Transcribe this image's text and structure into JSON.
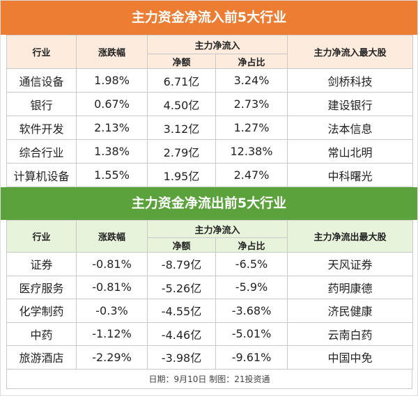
{
  "inflow": {
    "title": "主力资金净流入前5大行业",
    "headers": {
      "industry": "行业",
      "change": "涨跌幅",
      "main_flow": "主力净流入",
      "net_amount": "净额",
      "net_ratio": "净占比",
      "top_stock": "主力净流入最大股"
    },
    "rows": [
      {
        "industry": "通信设备",
        "change": "1.98%",
        "amount": "6.71亿",
        "ratio": "3.24%",
        "stock": "剑桥科技"
      },
      {
        "industry": "银行",
        "change": "0.67%",
        "amount": "4.50亿",
        "ratio": "2.73%",
        "stock": "建设银行"
      },
      {
        "industry": "软件开发",
        "change": "2.13%",
        "amount": "3.12亿",
        "ratio": "1.27%",
        "stock": "法本信息"
      },
      {
        "industry": "综合行业",
        "change": "1.38%",
        "amount": "2.79亿",
        "ratio": "12.38%",
        "stock": "常山北明"
      },
      {
        "industry": "计算机设备",
        "change": "1.55%",
        "amount": "1.95亿",
        "ratio": "2.47%",
        "stock": "中科曙光"
      }
    ]
  },
  "outflow": {
    "title": "主力资金净流出前5大行业",
    "headers": {
      "industry": "行业",
      "change": "涨跌幅",
      "main_flow": "主力净流入",
      "net_amount": "净额",
      "net_ratio": "净占比",
      "top_stock": "主力净流出最大股"
    },
    "rows": [
      {
        "industry": "证券",
        "change": "-0.81%",
        "amount": "-8.79亿",
        "ratio": "-6.5%",
        "stock": "天风证券"
      },
      {
        "industry": "医疗服务",
        "change": "-0.81%",
        "amount": "-5.26亿",
        "ratio": "-5.9%",
        "stock": "药明康德"
      },
      {
        "industry": "化学制药",
        "change": "-0.3%",
        "amount": "-4.55亿",
        "ratio": "-3.68%",
        "stock": "济民健康"
      },
      {
        "industry": "中药",
        "change": "-1.12%",
        "amount": "-4.46亿",
        "ratio": "-5.01%",
        "stock": "云南白药"
      },
      {
        "industry": "旅游酒店",
        "change": "-2.29%",
        "amount": "-3.98亿",
        "ratio": "-9.61%",
        "stock": "中国中免"
      }
    ]
  },
  "footer": "日期：9月10日 制图：21投资通",
  "colors": {
    "inflow_banner": "#ee7d34",
    "inflow_header": "#fdebdd",
    "outflow_banner": "#5ba23c",
    "outflow_header": "#e8f3dc"
  }
}
